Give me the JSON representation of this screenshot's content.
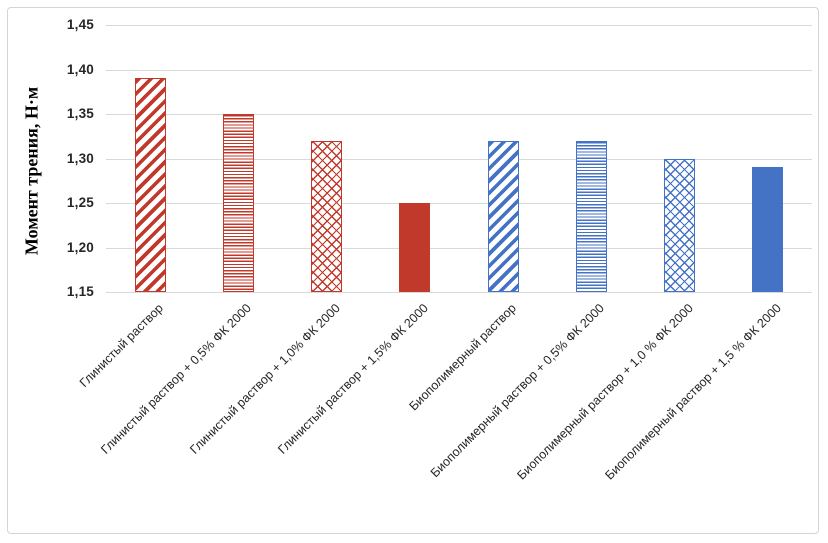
{
  "colors": {
    "red_series": "#C0392B",
    "blue_series": "#4472C4",
    "gridline": "#D9D9D9",
    "tick_label": "#262626",
    "frame_border": "#D4D4D4",
    "background": "#FFFFFF"
  },
  "chart_data": {
    "type": "bar",
    "title": "",
    "xlabel": "",
    "ylabel": "Момент трения, Н·м",
    "ylim": [
      1.15,
      1.45
    ],
    "grid": true,
    "legend": "none",
    "yticks": [
      {
        "value": 1.15,
        "label": "1,15"
      },
      {
        "value": 1.2,
        "label": "1,20"
      },
      {
        "value": 1.25,
        "label": "1,25"
      },
      {
        "value": 1.3,
        "label": "1,30"
      },
      {
        "value": 1.35,
        "label": "1,35"
      },
      {
        "value": 1.4,
        "label": "1,40"
      },
      {
        "value": 1.45,
        "label": "1,45"
      }
    ],
    "categories": [
      "Глинистый раствор",
      "Глинистый раствор + 0,5% ФК 2000",
      "Глинистый раствор + 1,0% ФК 2000",
      "Глинистый раствор + 1,5% ФК 2000",
      "Биополимерный раствор",
      "Биополимерный раствор + 0,5% ФК 2000",
      "Биополимерный раствор + 1,0 % ФК 2000",
      "Биополимерный раствор + 1,5 % ФК 2000"
    ],
    "values": [
      1.39,
      1.35,
      1.32,
      1.25,
      1.32,
      1.32,
      1.3,
      1.29
    ],
    "bar_styles": [
      {
        "color": "#C0392B",
        "pattern": "diagonal-up"
      },
      {
        "color": "#C0392B",
        "pattern": "horizontal"
      },
      {
        "color": "#C0392B",
        "pattern": "cross-diagonal"
      },
      {
        "color": "#C0392B",
        "pattern": "solid"
      },
      {
        "color": "#4472C4",
        "pattern": "diagonal-up"
      },
      {
        "color": "#4472C4",
        "pattern": "horizontal"
      },
      {
        "color": "#4472C4",
        "pattern": "cross-diagonal"
      },
      {
        "color": "#4472C4",
        "pattern": "solid"
      }
    ]
  }
}
